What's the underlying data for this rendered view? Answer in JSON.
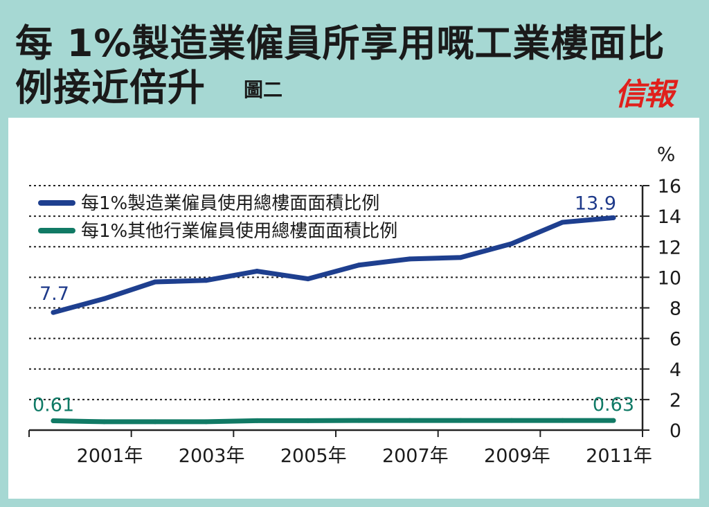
{
  "header": {
    "title_line1": "每 1%製造業僱員所享用嘅工業樓面比",
    "title_line2": "例接近倍升",
    "figure_label": "圖二",
    "logo_text": "信報"
  },
  "colors": {
    "background": "#a6d8d3",
    "panel": "#ffffff",
    "series_blue": "#1e3f8f",
    "series_green": "#117a65",
    "logo": "#e0201c"
  },
  "chart_data": {
    "type": "line",
    "unit": "%",
    "x": [
      2000,
      2001,
      2002,
      2003,
      2004,
      2005,
      2006,
      2007,
      2008,
      2009,
      2010,
      2011
    ],
    "xticks": [
      2001,
      2003,
      2005,
      2007,
      2009,
      2011
    ],
    "xtick_labels": [
      "2001年",
      "2003年",
      "2005年",
      "2007年",
      "2009年",
      "2011年"
    ],
    "ylim": [
      0,
      16
    ],
    "yticks": [
      0,
      2,
      4,
      6,
      8,
      10,
      12,
      14,
      16
    ],
    "grid": "horizontal dotted",
    "legend_position": "top-left",
    "series": [
      {
        "name": "每1%製造業僱員使用總樓面面積比例",
        "color": "#1e3f8f",
        "values": [
          7.7,
          8.6,
          9.7,
          9.8,
          10.4,
          9.9,
          10.8,
          11.2,
          11.3,
          12.2,
          13.6,
          13.9
        ],
        "first_label": "7.7",
        "last_label": "13.9"
      },
      {
        "name": "每1%其他行業僱員使用總樓面面積比例",
        "color": "#117a65",
        "values": [
          0.61,
          0.55,
          0.55,
          0.55,
          0.62,
          0.62,
          0.63,
          0.63,
          0.63,
          0.63,
          0.63,
          0.63
        ],
        "first_label": "0.61",
        "last_label": "0.63"
      }
    ]
  }
}
